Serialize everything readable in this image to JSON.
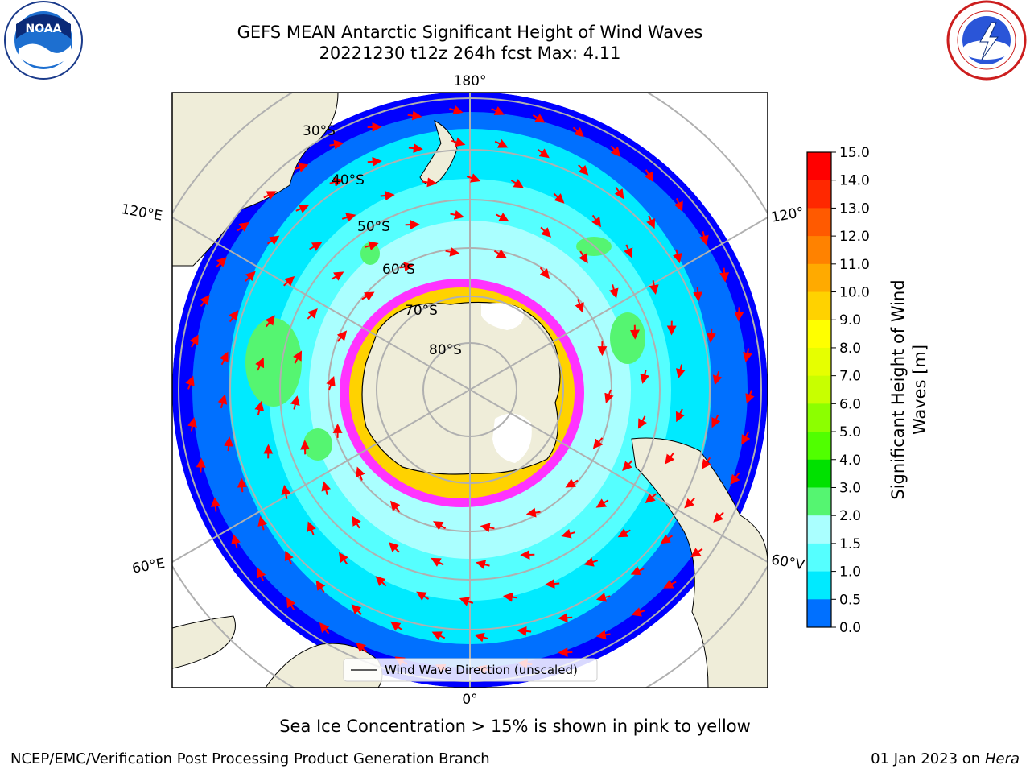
{
  "title_line1": "GEFS MEAN Antarctic Significant Height of Wind Waves",
  "title_line2": "20221230 t12z 264h fcst   Max: 4.11",
  "map": {
    "lon_labels": {
      "top": "180°",
      "bottom": "0°",
      "upper_left": "120°E",
      "upper_right": "120°",
      "lower_left": "60°E",
      "lower_right": "60°V"
    },
    "lat_labels": [
      "30°S",
      "40°S",
      "50°S",
      "60°S",
      "70°S",
      "80°S"
    ],
    "legend_label": "Wind Wave Direction (unscaled)",
    "colors": {
      "land": "#efedd9",
      "ocean_0": "#0000ff",
      "ocean_05": "#0070ff",
      "ocean_1": "#00eaff",
      "ocean_15": "#55ffff",
      "ocean_2": "#aaffff",
      "ocean_3": "#55f571",
      "ice_edge": "#ff33ff",
      "arrow": "#ff0000",
      "grid": "#b0b0b0"
    }
  },
  "colorbar": {
    "label_line1": "Significant Height of Wind",
    "label_line2": "Waves [m]",
    "ticks": [
      "15.0",
      "14.0",
      "13.0",
      "12.0",
      "11.0",
      "10.0",
      "9.0",
      "8.0",
      "7.0",
      "6.0",
      "5.0",
      "4.0",
      "3.0",
      "2.0",
      "1.5",
      "1.0",
      "0.5",
      "0.0"
    ],
    "bands": [
      "#ff0000",
      "#ff2800",
      "#ff5a00",
      "#ff8200",
      "#ffaa00",
      "#ffd200",
      "#ffff00",
      "#e6ff00",
      "#c8ff00",
      "#8cff00",
      "#50ff00",
      "#00e100",
      "#55f571",
      "#aaffff",
      "#55ffff",
      "#00eaff",
      "#0070ff",
      "#0000ff"
    ]
  },
  "ice_note": "Sea Ice Concentration > 15% is shown in pink to yellow",
  "footer_left": "NCEP/EMC/Verification Post Processing Product Generation Branch",
  "footer_right_prefix": "01 Jan 2023 on ",
  "footer_right_host": "Hera",
  "logos": {
    "left": "noaa-logo",
    "right": "nws-logo"
  }
}
